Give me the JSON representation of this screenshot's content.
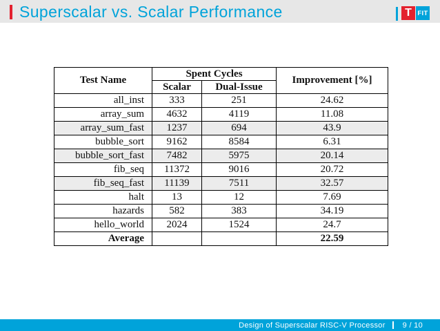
{
  "header": {
    "title": "Superscalar vs. Scalar Performance",
    "logo_t": "T",
    "logo_fit": "FIT"
  },
  "table": {
    "headers": {
      "test_name": "Test Name",
      "spent_cycles": "Spent Cycles",
      "scalar": "Scalar",
      "dual_issue": "Dual-Issue",
      "improvement": "Improvement [%]"
    },
    "rows": [
      {
        "name": "all_inst",
        "scalar": "333",
        "dual": "251",
        "improvement": "24.62",
        "shaded": false,
        "bold": false
      },
      {
        "name": "array_sum",
        "scalar": "4632",
        "dual": "4119",
        "improvement": "11.08",
        "shaded": false,
        "bold": false
      },
      {
        "name": "array_sum_fast",
        "scalar": "1237",
        "dual": "694",
        "improvement": "43.9",
        "shaded": true,
        "bold": false
      },
      {
        "name": "bubble_sort",
        "scalar": "9162",
        "dual": "8584",
        "improvement": "6.31",
        "shaded": false,
        "bold": false
      },
      {
        "name": "bubble_sort_fast",
        "scalar": "7482",
        "dual": "5975",
        "improvement": "20.14",
        "shaded": true,
        "bold": false
      },
      {
        "name": "fib_seq",
        "scalar": "11372",
        "dual": "9016",
        "improvement": "20.72",
        "shaded": false,
        "bold": false
      },
      {
        "name": "fib_seq_fast",
        "scalar": "11139",
        "dual": "7511",
        "improvement": "32.57",
        "shaded": true,
        "bold": false
      },
      {
        "name": "halt",
        "scalar": "13",
        "dual": "12",
        "improvement": "7.69",
        "shaded": false,
        "bold": false
      },
      {
        "name": "hazards",
        "scalar": "582",
        "dual": "383",
        "improvement": "34.19",
        "shaded": false,
        "bold": false
      },
      {
        "name": "hello_world",
        "scalar": "2024",
        "dual": "1524",
        "improvement": "24.7",
        "shaded": false,
        "bold": false
      },
      {
        "name": "Average",
        "scalar": "",
        "dual": "",
        "improvement": "22.59",
        "shaded": false,
        "bold": true
      }
    ]
  },
  "footer": {
    "title": "Design of Superscalar RISC-V Processor",
    "page": "9 / 10"
  },
  "colors": {
    "accent_cyan": "#00a3da",
    "accent_red": "#e3212e",
    "header_bg": "#e7e7e7",
    "row_shade": "#ececec"
  }
}
